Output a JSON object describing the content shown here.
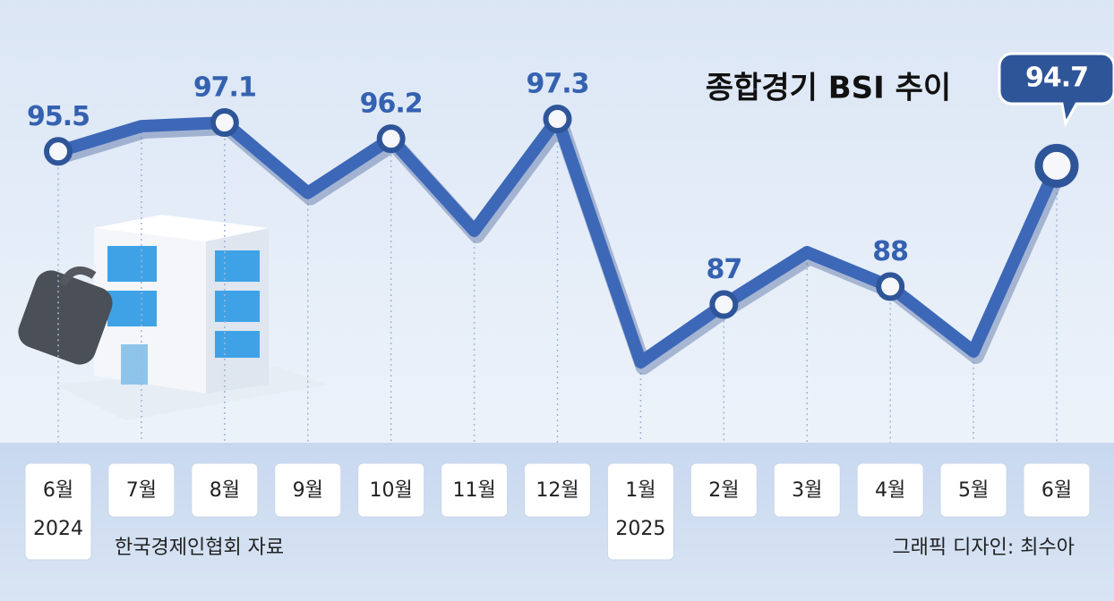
{
  "chart_data": {
    "type": "line",
    "title": "종합경기 BSI 추이",
    "categories": [
      "6월",
      "7월",
      "8월",
      "9월",
      "10월",
      "11월",
      "12월",
      "1월",
      "2월",
      "3월",
      "4월",
      "5월",
      "6월"
    ],
    "year_labels": [
      "2024",
      null,
      null,
      null,
      null,
      null,
      null,
      "2025",
      null,
      null,
      null,
      null,
      null
    ],
    "values": [
      95.5,
      96.9,
      97.1,
      93.2,
      96.2,
      91.1,
      97.3,
      83.8,
      87,
      89.9,
      88,
      84.4,
      94.7
    ],
    "value_labels": [
      "95.5",
      null,
      "97.1",
      null,
      "96.2",
      null,
      "97.3",
      null,
      "87",
      null,
      "88",
      null,
      "94.7"
    ],
    "color": "#3d68b8",
    "source": "한국경제인협회 자료",
    "credit": "그래픽 디자인: 최수아"
  }
}
